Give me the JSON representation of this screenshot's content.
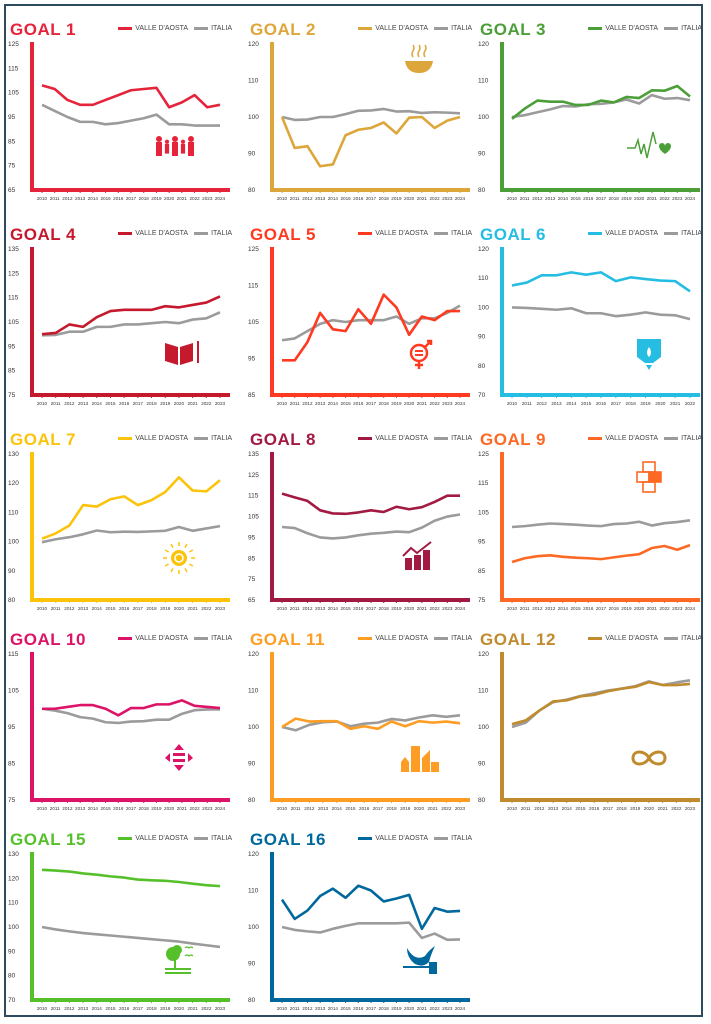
{
  "legend": {
    "region": "VALLE D'AOSTA",
    "national": "ITALIA"
  },
  "colors": {
    "italia": "#9b9b9b",
    "frame": "#2e4a5e"
  },
  "chart_data": [
    {
      "type": "line",
      "title": "GOAL 1",
      "color": "#e5243b",
      "icon": "family-icon",
      "ylim": [
        65,
        125
      ],
      "yticks": [
        65,
        75,
        85,
        95,
        105,
        115,
        125
      ],
      "x": [
        "2010",
        "2011",
        "2012",
        "2013",
        "2014",
        "2015",
        "2016",
        "2017",
        "2018",
        "2019",
        "2020",
        "2021",
        "2022",
        "2023",
        "2024"
      ],
      "series": [
        {
          "name": "VALLE D'AOSTA",
          "values": [
            108,
            106.5,
            102,
            100,
            100,
            102,
            104,
            106,
            106.5,
            107,
            99,
            101,
            104,
            99,
            100
          ]
        },
        {
          "name": "ITALIA",
          "values": [
            100,
            97.5,
            95,
            93,
            93,
            92,
            92.5,
            93.5,
            94.5,
            96,
            92,
            92,
            91.5,
            91.5,
            91.5
          ]
        }
      ]
    },
    {
      "type": "line",
      "title": "GOAL 2",
      "color": "#dda63a",
      "icon": "food-bowl-icon",
      "ylim": [
        80,
        120
      ],
      "yticks": [
        80,
        90,
        100,
        110,
        120
      ],
      "x": [
        "2010",
        "2011",
        "2012",
        "2013",
        "2014",
        "2015",
        "2016",
        "2017",
        "2018",
        "2019",
        "2020",
        "2021",
        "2022",
        "2023",
        "2024"
      ],
      "series": [
        {
          "name": "VALLE D'AOSTA",
          "values": [
            100,
            91.5,
            92,
            86.5,
            87,
            95,
            96.5,
            97,
            98.5,
            95.5,
            99.8,
            100,
            97,
            99,
            100
          ]
        },
        {
          "name": "ITALIA",
          "values": [
            100,
            99.2,
            99.3,
            100,
            100,
            100.8,
            101.7,
            101.8,
            102.2,
            101.5,
            101.6,
            101.1,
            101.3,
            101.2,
            101
          ]
        }
      ]
    },
    {
      "type": "line",
      "title": "GOAL 3",
      "color": "#4c9f38",
      "icon": "heartbeat-icon",
      "ylim": [
        80,
        120
      ],
      "yticks": [
        80,
        90,
        100,
        110,
        120
      ],
      "x": [
        "2010",
        "2011",
        "2012",
        "2013",
        "2014",
        "2015",
        "2016",
        "2017",
        "2018",
        "2019",
        "2020",
        "2021",
        "2022",
        "2023",
        "2024"
      ],
      "series": [
        {
          "name": "VALLE D'AOSTA",
          "values": [
            99.5,
            102.3,
            104.5,
            104.2,
            104.2,
            103.3,
            103.3,
            104.5,
            104,
            105.5,
            105.2,
            107.3,
            107.2,
            108.5,
            105.6
          ]
        },
        {
          "name": "ITALIA",
          "values": [
            100,
            100.5,
            101.3,
            102.1,
            103,
            102.9,
            103.5,
            103.6,
            104,
            104.8,
            103.7,
            106,
            105,
            105.2,
            104.6
          ]
        }
      ]
    },
    {
      "type": "line",
      "title": "GOAL 4",
      "color": "#c5192d",
      "icon": "book-icon",
      "ylim": [
        75,
        135
      ],
      "yticks": [
        75,
        85,
        95,
        105,
        115,
        125,
        135
      ],
      "x": [
        "2010",
        "2011",
        "2012",
        "2013",
        "2014",
        "2015",
        "2016",
        "2017",
        "2018",
        "2019",
        "2020",
        "2021",
        "2022",
        "2023"
      ],
      "series": [
        {
          "name": "VALLE D'AOSTA",
          "values": [
            100,
            100.5,
            104,
            103,
            107,
            109.5,
            110,
            110,
            110,
            111.5,
            111,
            112,
            113,
            115.5
          ]
        },
        {
          "name": "ITALIA",
          "values": [
            99.5,
            99.7,
            101,
            101,
            103,
            103,
            104,
            104,
            104.5,
            105,
            104.5,
            106,
            106.5,
            109
          ]
        }
      ]
    },
    {
      "type": "line",
      "title": "GOAL 5",
      "color": "#ff3a21",
      "icon": "gender-equality-icon",
      "ylim": [
        85,
        125
      ],
      "yticks": [
        85,
        95,
        105,
        115,
        125
      ],
      "x": [
        "2010",
        "2011",
        "2012",
        "2013",
        "2014",
        "2015",
        "2016",
        "2017",
        "2018",
        "2019",
        "2020",
        "2021",
        "2022",
        "2023",
        "2024"
      ],
      "series": [
        {
          "name": "VALLE D'AOSTA",
          "values": [
            94.5,
            94.5,
            99.5,
            107.5,
            103,
            102.5,
            108.5,
            104.5,
            112.5,
            109,
            101.5,
            106.5,
            105.5,
            108,
            108
          ]
        },
        {
          "name": "ITALIA",
          "values": [
            100,
            100.5,
            102.5,
            104.5,
            105.5,
            105,
            105.5,
            105.5,
            105.5,
            106.5,
            104.5,
            106,
            106,
            107.5,
            109.5
          ]
        }
      ]
    },
    {
      "type": "line",
      "title": "GOAL 6",
      "color": "#26bde2",
      "icon": "water-icon",
      "ylim": [
        70,
        120
      ],
      "yticks": [
        70,
        80,
        90,
        100,
        110,
        120
      ],
      "x": [
        "2010",
        "2011",
        "2012",
        "2013",
        "2014",
        "2015",
        "2016",
        "2017",
        "2018",
        "2019",
        "2020",
        "2021",
        "2022"
      ],
      "series": [
        {
          "name": "VALLE D'AOSTA",
          "values": [
            107.5,
            108.5,
            111,
            111,
            112,
            111.2,
            112,
            109,
            110.3,
            109.7,
            109.2,
            109,
            105.5
          ]
        },
        {
          "name": "ITALIA",
          "values": [
            100,
            99.8,
            99.5,
            99.2,
            99.7,
            98,
            98,
            97,
            97.5,
            98.3,
            97.5,
            97.3,
            96
          ]
        }
      ]
    },
    {
      "type": "line",
      "title": "GOAL 7",
      "color": "#fcc30b",
      "icon": "sun-power-icon",
      "ylim": [
        80,
        130
      ],
      "yticks": [
        80,
        90,
        100,
        110,
        120,
        130
      ],
      "x": [
        "2010",
        "2011",
        "2012",
        "2013",
        "2014",
        "2015",
        "2016",
        "2017",
        "2018",
        "2019",
        "2020",
        "2021",
        "2022",
        "2023"
      ],
      "series": [
        {
          "name": "VALLE D'AOSTA",
          "values": [
            101,
            102.8,
            105.5,
            112.5,
            112,
            114.5,
            115.5,
            112.5,
            114.2,
            117,
            122,
            117.5,
            117.2,
            121
          ]
        },
        {
          "name": "ITALIA",
          "values": [
            99.8,
            100.8,
            101.5,
            102.5,
            103.8,
            103.2,
            103.4,
            103.3,
            103.5,
            103.7,
            105,
            103.7,
            104.5,
            105.3
          ]
        }
      ]
    },
    {
      "type": "line",
      "title": "GOAL 8",
      "color": "#a21942",
      "icon": "growth-chart-icon",
      "ylim": [
        65,
        135
      ],
      "yticks": [
        65,
        75,
        85,
        95,
        105,
        115,
        125,
        135
      ],
      "x": [
        "2010",
        "2011",
        "2012",
        "2013",
        "2014",
        "2015",
        "2016",
        "2017",
        "2018",
        "2019",
        "2020",
        "2021",
        "2022",
        "2023",
        "2024"
      ],
      "series": [
        {
          "name": "VALLE D'AOSTA",
          "values": [
            116,
            114.2,
            112.5,
            108,
            106.5,
            106.3,
            107,
            108,
            107.2,
            109.7,
            108.5,
            109.5,
            112,
            115,
            115
          ]
        },
        {
          "name": "ITALIA",
          "values": [
            100,
            99.5,
            97,
            95,
            94.5,
            95,
            96,
            96.8,
            97.2,
            97.8,
            97.5,
            99.7,
            103,
            105,
            106
          ]
        }
      ]
    },
    {
      "type": "line",
      "title": "GOAL 9",
      "color": "#fd6925",
      "icon": "infrastructure-cubes-icon",
      "ylim": [
        75,
        125
      ],
      "yticks": [
        75,
        85,
        95,
        105,
        115,
        125
      ],
      "x": [
        "2010",
        "2011",
        "2012",
        "2013",
        "2014",
        "2015",
        "2016",
        "2017",
        "2018",
        "2019",
        "2020",
        "2021",
        "2022",
        "2023",
        "2024"
      ],
      "series": [
        {
          "name": "VALLE D'AOSTA",
          "values": [
            88,
            89.3,
            90,
            90.3,
            89.8,
            89.5,
            89.3,
            89,
            89.6,
            90.2,
            90.7,
            92.8,
            93.5,
            92.2,
            93.8
          ]
        },
        {
          "name": "ITALIA",
          "values": [
            100,
            100.3,
            100.8,
            101.2,
            101,
            100.8,
            100.5,
            100.3,
            101,
            101.2,
            101.8,
            100.5,
            101.3,
            101.7,
            102.3
          ]
        }
      ]
    },
    {
      "type": "line",
      "title": "GOAL 10",
      "color": "#dd1367",
      "icon": "reduced-inequality-icon",
      "ylim": [
        75,
        115
      ],
      "yticks": [
        75,
        85,
        95,
        105,
        115
      ],
      "x": [
        "2010",
        "2011",
        "2012",
        "2013",
        "2014",
        "2015",
        "2016",
        "2017",
        "2018",
        "2019",
        "2020",
        "2021",
        "2022",
        "2023",
        "2024"
      ],
      "series": [
        {
          "name": "VALLE D'AOSTA",
          "values": [
            100,
            100,
            100.5,
            101,
            101,
            100,
            98.2,
            100.2,
            100.2,
            101.2,
            101.2,
            102.3,
            100.8,
            100.5,
            100.2
          ]
        },
        {
          "name": "ITALIA",
          "values": [
            100,
            99.5,
            98.8,
            97.7,
            97.3,
            96.3,
            96.1,
            96.5,
            96.6,
            97,
            97,
            98.6,
            99.6,
            99.8,
            99.8
          ]
        }
      ]
    },
    {
      "type": "line",
      "title": "GOAL 11",
      "color": "#fd9d24",
      "icon": "city-buildings-icon",
      "ylim": [
        80,
        120
      ],
      "yticks": [
        80,
        90,
        100,
        110,
        120
      ],
      "x": [
        "2010",
        "2011",
        "2012",
        "2013",
        "2014",
        "2015",
        "2016",
        "2017",
        "2018",
        "2019",
        "2020",
        "2021",
        "2022",
        "2023"
      ],
      "series": [
        {
          "name": "VALLE D'AOSTA",
          "values": [
            100,
            102.3,
            101.5,
            101.6,
            101.6,
            99.5,
            100.2,
            99.5,
            101.5,
            100.2,
            101.6,
            101.2,
            101.5,
            101
          ]
        },
        {
          "name": "ITALIA",
          "values": [
            100,
            99.1,
            100.6,
            101.3,
            101.5,
            100.2,
            100.9,
            101.2,
            102.2,
            101.8,
            102.6,
            103.2,
            102.8,
            103.2
          ]
        }
      ]
    },
    {
      "type": "line",
      "title": "GOAL 12",
      "color": "#bf8b2e",
      "icon": "infinity-loop-icon",
      "ylim": [
        80,
        120
      ],
      "yticks": [
        80,
        90,
        100,
        110,
        120
      ],
      "x": [
        "2010",
        "2011",
        "2012",
        "2013",
        "2014",
        "2015",
        "2016",
        "2017",
        "2018",
        "2019",
        "2020",
        "2021",
        "2022",
        "2023"
      ],
      "series": [
        {
          "name": "VALLE D'AOSTA",
          "values": [
            100.8,
            101.8,
            104.5,
            107,
            107.3,
            108.4,
            108.8,
            109.8,
            110.5,
            111,
            112.3,
            111.5,
            111.5,
            111.8
          ]
        },
        {
          "name": "ITALIA",
          "values": [
            100,
            101.2,
            104.5,
            106.8,
            107.5,
            108.5,
            109.2,
            110,
            110.5,
            111.2,
            112.5,
            111.5,
            112.2,
            112.8
          ]
        }
      ]
    },
    {
      "type": "line",
      "title": "GOAL 15",
      "color": "#56c02b",
      "icon": "tree-birds-icon",
      "ylim": [
        70,
        130
      ],
      "yticks": [
        70,
        80,
        90,
        100,
        110,
        120,
        130
      ],
      "x": [
        "2010",
        "2011",
        "2012",
        "2013",
        "2014",
        "2015",
        "2016",
        "2017",
        "2018",
        "2019",
        "2020",
        "2021",
        "2022",
        "2023"
      ],
      "series": [
        {
          "name": "VALLE D'AOSTA",
          "values": [
            123.5,
            123.2,
            122.8,
            122,
            121.5,
            120.8,
            120.3,
            119.5,
            119.2,
            119,
            118.5,
            117.8,
            117.2,
            116.8
          ]
        },
        {
          "name": "ITALIA",
          "values": [
            100,
            99,
            98.2,
            97.5,
            97,
            96.5,
            96,
            95.5,
            95,
            94.5,
            94,
            93.2,
            92.5,
            91.8
          ]
        }
      ]
    },
    {
      "type": "line",
      "title": "GOAL 16",
      "color": "#00689d",
      "icon": "dove-gavel-icon",
      "ylim": [
        80,
        120
      ],
      "yticks": [
        80,
        90,
        100,
        110,
        120
      ],
      "x": [
        "2010",
        "2011",
        "2012",
        "2013",
        "2014",
        "2015",
        "2016",
        "2017",
        "2018",
        "2019",
        "2020",
        "2021",
        "2022",
        "2023",
        "2024"
      ],
      "series": [
        {
          "name": "VALLE D'AOSTA",
          "values": [
            107.5,
            102.2,
            104.5,
            108.5,
            110.5,
            108,
            111.3,
            110,
            107,
            107.8,
            108.8,
            99.5,
            105.2,
            104.2,
            104.4
          ]
        },
        {
          "name": "ITALIA",
          "values": [
            100,
            99.2,
            98.8,
            98.5,
            99.5,
            100.3,
            101,
            101,
            101,
            101,
            101.2,
            97,
            98.2,
            96.5,
            96.6
          ]
        }
      ]
    }
  ]
}
